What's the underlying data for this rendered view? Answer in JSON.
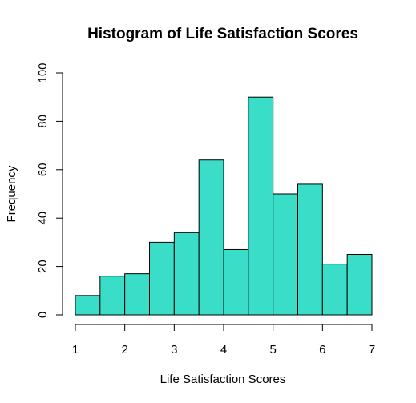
{
  "chart_data": {
    "type": "bar",
    "title": "Histogram of Life Satisfaction Scores",
    "xlabel": "Life Satisfaction Scores",
    "ylabel": "Frequency",
    "xlim": [
      1,
      7
    ],
    "ylim": [
      0,
      100
    ],
    "xticks": [
      "1",
      "2",
      "3",
      "4",
      "5",
      "6",
      "7"
    ],
    "yticks": [
      "0",
      "20",
      "40",
      "60",
      "80",
      "100"
    ],
    "bin_width": 0.5,
    "bins": [
      {
        "start": 1.0,
        "end": 1.5,
        "count": 8
      },
      {
        "start": 1.5,
        "end": 2.0,
        "count": 16
      },
      {
        "start": 2.0,
        "end": 2.5,
        "count": 17
      },
      {
        "start": 2.5,
        "end": 3.0,
        "count": 30
      },
      {
        "start": 3.0,
        "end": 3.5,
        "count": 34
      },
      {
        "start": 3.5,
        "end": 4.0,
        "count": 64
      },
      {
        "start": 4.0,
        "end": 4.5,
        "count": 27
      },
      {
        "start": 4.5,
        "end": 5.0,
        "count": 90
      },
      {
        "start": 5.0,
        "end": 5.5,
        "count": 50
      },
      {
        "start": 5.5,
        "end": 6.0,
        "count": 54
      },
      {
        "start": 6.0,
        "end": 6.5,
        "count": 21
      },
      {
        "start": 6.5,
        "end": 7.0,
        "count": 25
      }
    ],
    "grid": false,
    "legend": "none",
    "bar_color": "#3ADDC7",
    "edge_color": "#000000"
  }
}
